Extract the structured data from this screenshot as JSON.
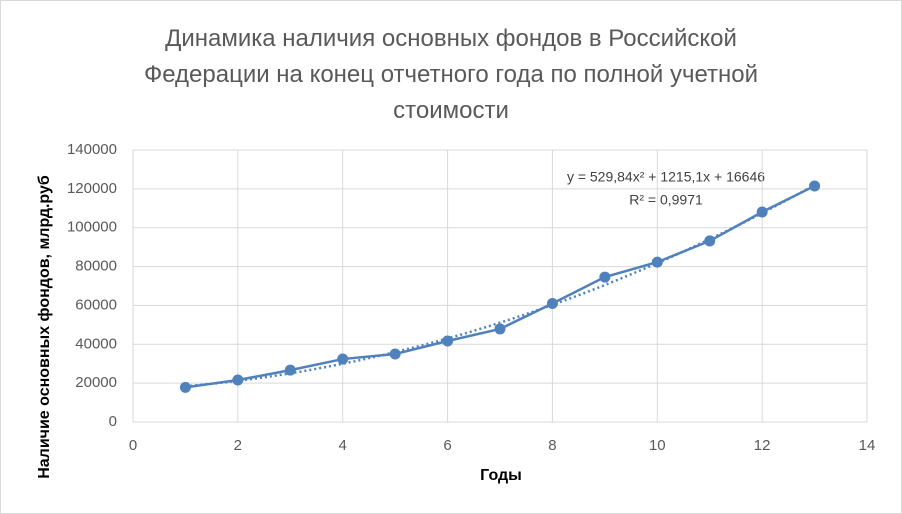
{
  "chart_data": {
    "type": "scatter",
    "title": "Динамика наличия основных фондов в Российской Федерации на конец отчетного года по полной учетной стоимости",
    "x_label": "Годы",
    "y_label": "Наличие основных фондов, млрд.руб",
    "x": [
      1,
      2,
      3,
      4,
      5,
      6,
      7,
      8,
      9,
      10,
      11,
      12,
      13
    ],
    "series": [
      {
        "color": "#4f81bd",
        "values": [
          17800,
          21600,
          26700,
          32400,
          35000,
          41700,
          47900,
          61000,
          74600,
          82300,
          93200,
          108100,
          121500
        ]
      }
    ],
    "trendline": {
      "equation": "y = 529,84x² + 1215,1x + 16646",
      "r2": "R² = 0,9971",
      "coefficients": [
        529.84,
        1215.1,
        16646
      ]
    },
    "xlim": [
      0,
      14
    ],
    "xticks": [
      0,
      2,
      4,
      6,
      8,
      10,
      12,
      14
    ],
    "ylim": [
      0,
      140000
    ],
    "yticks": [
      0,
      20000,
      40000,
      60000,
      80000,
      100000,
      120000,
      140000
    ],
    "grid": true
  }
}
